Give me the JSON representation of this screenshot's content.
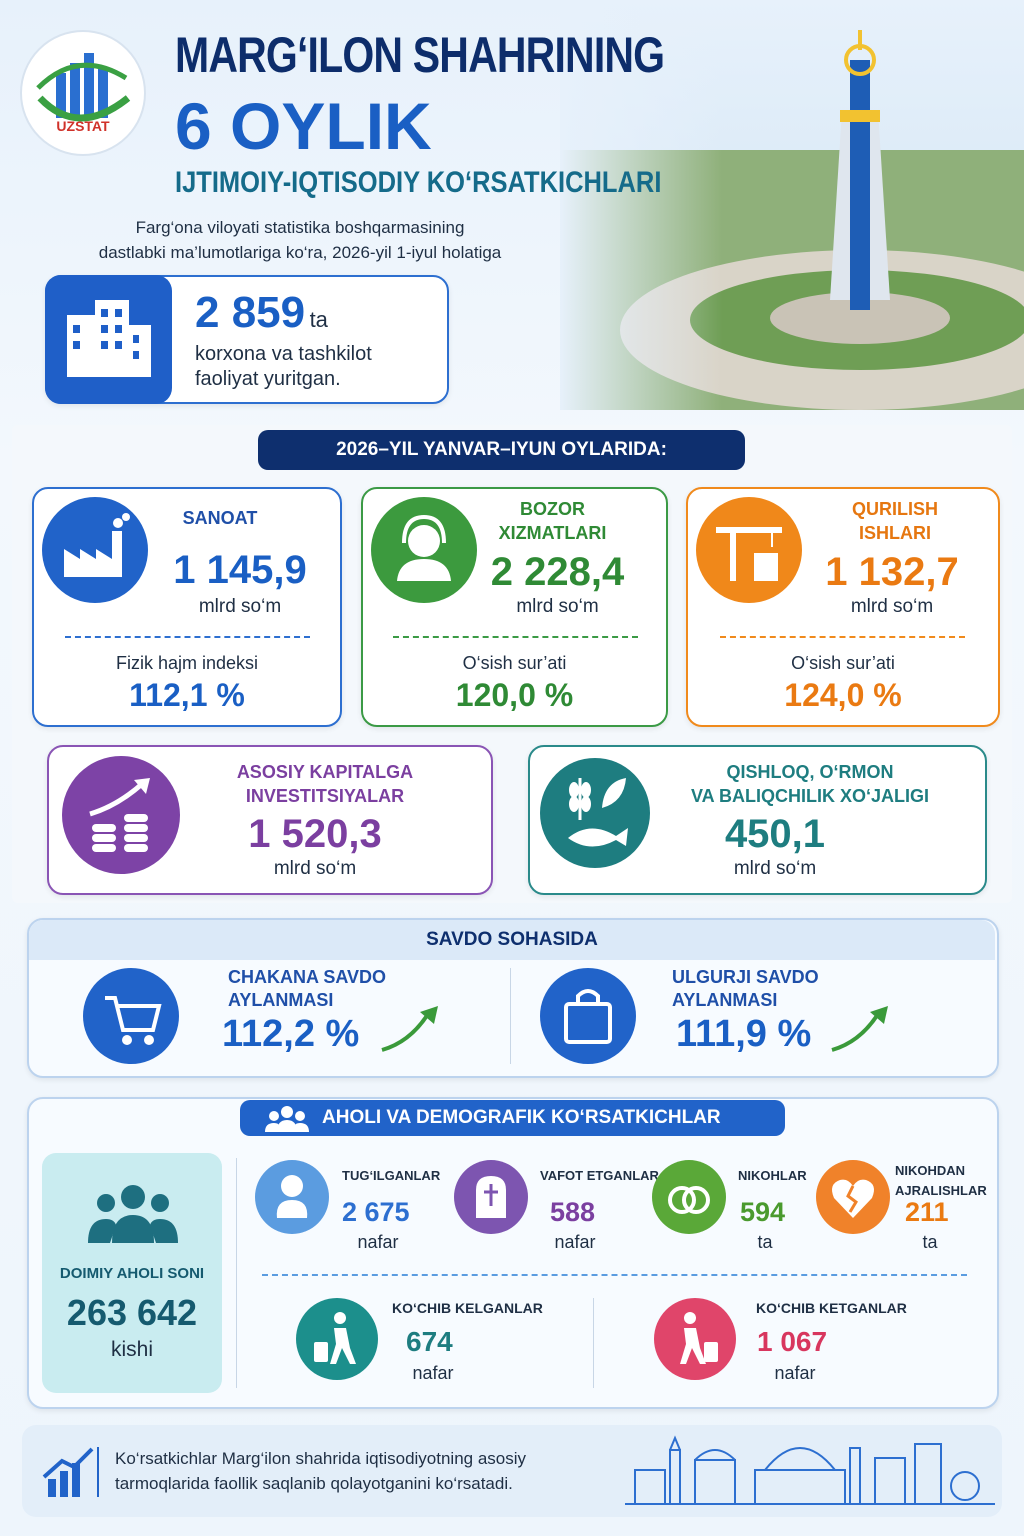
{
  "header": {
    "logo": "UZSTAT",
    "title_line1": "MARG‘ILON SHAHRINING",
    "title_line2": "6 OYLIK",
    "title_line3": "IJTIMOIY-IQTISODIY KO‘RSATKICHLARI",
    "source_line1": "Farg‘ona viloyati statistika boshqarmasining",
    "source_line2": "dastlabki ma’lumotlariga ko‘ra, 2026-yil 1-iyul holatiga"
  },
  "enterprises": {
    "value": "2 859",
    "unit": "ta",
    "text_line1": "korxona va tashkilot",
    "text_line2": "faoliyat yuritgan."
  },
  "period": {
    "banner": "2026–YIL YANVAR–IYUN OYLARIDA:"
  },
  "sectors": [
    {
      "title_lines": [
        "SANOAT"
      ],
      "value": "1 145,9",
      "unit": "mlrd so‘m",
      "sub_label": "Fizik hajm indeksi",
      "sub_value": "112,1 %"
    },
    {
      "title_lines": [
        "BOZOR",
        "XIZMATLARI"
      ],
      "value": "2 228,4",
      "unit": "mlrd so‘m",
      "sub_label": "O‘sish sur’ati",
      "sub_value": "120,0 %"
    },
    {
      "title_lines": [
        "QURILISH",
        "ISHLARI"
      ],
      "value": "1 132,7",
      "unit": "mlrd so‘m",
      "sub_label": "O‘sish sur’ati",
      "sub_value": "124,0 %"
    },
    {
      "title_lines": [
        "ASOSIY KAPITALGA",
        "INVESTITSIYALAR"
      ],
      "value": "1 520,3",
      "unit": "mlrd so‘m"
    },
    {
      "title_lines": [
        "QISHLOQ, O‘RMON",
        "VA BALIQCHILIK XO‘JALIGI"
      ],
      "value": "450,1",
      "unit": "mlrd so‘m"
    }
  ],
  "trade": {
    "title": "SAVDO SOHASIDA",
    "items": [
      {
        "label_lines": [
          "CHAKANA SAVDO",
          "AYLANMASI"
        ],
        "value": "112,2 %"
      },
      {
        "label_lines": [
          "ULGURJI SAVDO",
          "AYLANMASI"
        ],
        "value": "111,9 %"
      }
    ]
  },
  "demography": {
    "title": "AHOLI VA DEMOGRAFIK KO‘RSATKICHLAR",
    "population": {
      "label": "DOIMIY AHOLI SONI",
      "value": "263 642",
      "unit": "kishi"
    },
    "events": [
      {
        "label_lines": [
          "TUG‘ILGANLAR"
        ],
        "value": "2 675",
        "unit": "nafar"
      },
      {
        "label_lines": [
          "VAFOT ETGANLAR"
        ],
        "value": "588",
        "unit": "nafar"
      },
      {
        "label_lines": [
          "NIKOHLAR"
        ],
        "value": "594",
        "unit": "ta"
      },
      {
        "label_lines": [
          "NIKOHDAN",
          "AJRALISHLAR"
        ],
        "value": "211",
        "unit": "ta"
      }
    ],
    "migration": [
      {
        "label_lines": [
          "KO‘CHIB KELGANLAR"
        ],
        "value": "674",
        "unit": "nafar"
      },
      {
        "label_lines": [
          "KO‘CHIB KETGANLAR"
        ],
        "value": "1 067",
        "unit": "nafar"
      }
    ]
  },
  "footer": {
    "text_line1": "Ko‘rsatkichlar Marg‘ilon shahrida iqtisodiyotning asosiy",
    "text_line2": "tarmoqlarida faollik saqlanib qolayotganini ko‘rsatadi."
  }
}
